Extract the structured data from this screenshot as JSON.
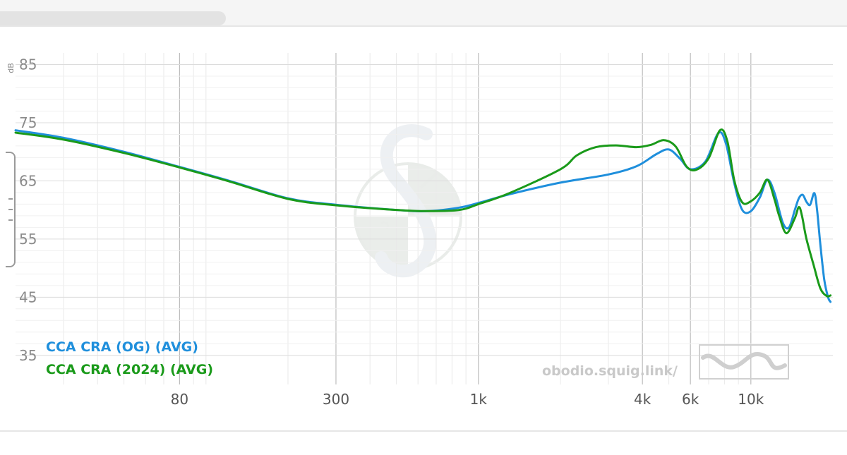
{
  "chart_data": {
    "type": "line",
    "unit_label": "dB",
    "xscale": "log",
    "xlim": [
      20,
      20000
    ],
    "ylim": [
      30,
      87
    ],
    "yticks": [
      35,
      45,
      55,
      65,
      75,
      85
    ],
    "xtick_labels": [
      {
        "value": 80,
        "label": "80"
      },
      {
        "value": 300,
        "label": "300"
      },
      {
        "value": 1000,
        "label": "1k"
      },
      {
        "value": 4000,
        "label": "4k"
      },
      {
        "value": 6000,
        "label": "6k"
      },
      {
        "value": 10000,
        "label": "10k"
      }
    ],
    "grid": true,
    "legend_position": "bottom-left",
    "credit": "obodio.squig.link/",
    "series": [
      {
        "name": "CCA CRA (OG) (AVG)",
        "color": "#1f8fdc",
        "points": [
          [
            20,
            73.7
          ],
          [
            30,
            72.4
          ],
          [
            50,
            70.0
          ],
          [
            80,
            67.4
          ],
          [
            120,
            65.1
          ],
          [
            200,
            62.0
          ],
          [
            300,
            60.9
          ],
          [
            500,
            60.0
          ],
          [
            650,
            59.8
          ],
          [
            850,
            60.4
          ],
          [
            1000,
            61.2
          ],
          [
            1300,
            62.7
          ],
          [
            2000,
            64.7
          ],
          [
            3000,
            66.1
          ],
          [
            3800,
            67.5
          ],
          [
            4500,
            69.6
          ],
          [
            5000,
            70.4
          ],
          [
            5500,
            68.8
          ],
          [
            6000,
            67.0
          ],
          [
            6800,
            68.3
          ],
          [
            7600,
            73.2
          ],
          [
            8100,
            71.4
          ],
          [
            8700,
            64.5
          ],
          [
            9300,
            60.0
          ],
          [
            10000,
            59.8
          ],
          [
            10800,
            62.2
          ],
          [
            11500,
            65.2
          ],
          [
            12200,
            63.0
          ],
          [
            13100,
            57.8
          ],
          [
            13800,
            57.0
          ],
          [
            14500,
            60.0
          ],
          [
            15000,
            62.0
          ],
          [
            15500,
            62.6
          ],
          [
            16000,
            61.4
          ],
          [
            16500,
            60.9
          ],
          [
            17100,
            62.9
          ],
          [
            17500,
            60.0
          ],
          [
            18000,
            54.0
          ],
          [
            18600,
            48.0
          ],
          [
            19200,
            45.0
          ],
          [
            19600,
            44.2
          ]
        ]
      },
      {
        "name": "CCA CRA (2024) (AVG)",
        "color": "#1a9a1a",
        "points": [
          [
            20,
            73.3
          ],
          [
            30,
            72.1
          ],
          [
            50,
            69.8
          ],
          [
            80,
            67.3
          ],
          [
            120,
            65.0
          ],
          [
            200,
            61.9
          ],
          [
            300,
            60.8
          ],
          [
            500,
            60.0
          ],
          [
            650,
            59.8
          ],
          [
            850,
            60.0
          ],
          [
            1000,
            61.0
          ],
          [
            1300,
            62.9
          ],
          [
            2000,
            67.0
          ],
          [
            2300,
            69.4
          ],
          [
            2700,
            70.8
          ],
          [
            3200,
            71.1
          ],
          [
            3800,
            70.8
          ],
          [
            4300,
            71.2
          ],
          [
            4800,
            72.0
          ],
          [
            5300,
            70.9
          ],
          [
            5800,
            67.5
          ],
          [
            6300,
            66.9
          ],
          [
            7000,
            68.9
          ],
          [
            7700,
            73.7
          ],
          [
            8200,
            71.8
          ],
          [
            8700,
            65.0
          ],
          [
            9300,
            61.3
          ],
          [
            10000,
            61.5
          ],
          [
            10800,
            63.0
          ],
          [
            11500,
            65.2
          ],
          [
            12200,
            61.9
          ],
          [
            12700,
            59.0
          ],
          [
            13500,
            56.0
          ],
          [
            14500,
            58.6
          ],
          [
            15000,
            60.5
          ],
          [
            15400,
            59.0
          ],
          [
            16000,
            55.0
          ],
          [
            17000,
            50.5
          ],
          [
            18000,
            46.5
          ],
          [
            19000,
            45.2
          ],
          [
            19600,
            45.3
          ]
        ]
      }
    ]
  }
}
